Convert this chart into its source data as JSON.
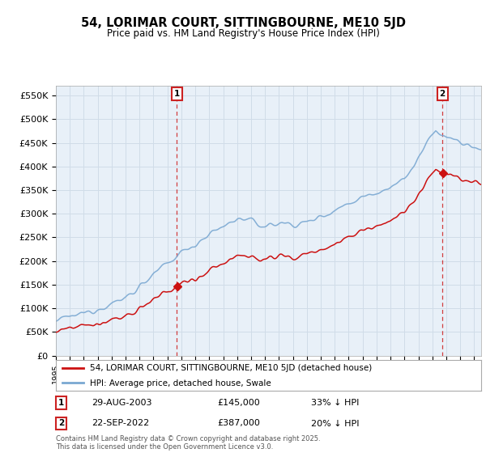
{
  "title": "54, LORIMAR COURT, SITTINGBOURNE, ME10 5JD",
  "subtitle": "Price paid vs. HM Land Registry's House Price Index (HPI)",
  "ylim": [
    0,
    570000
  ],
  "yticks": [
    0,
    50000,
    100000,
    150000,
    200000,
    250000,
    300000,
    350000,
    400000,
    450000,
    500000,
    550000
  ],
  "ytick_labels": [
    "£0",
    "£50K",
    "£100K",
    "£150K",
    "£200K",
    "£250K",
    "£300K",
    "£350K",
    "£400K",
    "£450K",
    "£500K",
    "£550K"
  ],
  "hpi_color": "#7aa8d2",
  "price_color": "#cc1111",
  "marker1_date": 2003.66,
  "marker1_price": 145000,
  "marker2_date": 2022.72,
  "marker2_price": 387000,
  "legend_line1": "54, LORIMAR COURT, SITTINGBOURNE, ME10 5JD (detached house)",
  "legend_line2": "HPI: Average price, detached house, Swale",
  "annotation1_date": "29-AUG-2003",
  "annotation1_price": "£145,000",
  "annotation1_hpi": "33% ↓ HPI",
  "annotation2_date": "22-SEP-2022",
  "annotation2_price": "£387,000",
  "annotation2_hpi": "20% ↓ HPI",
  "footnote": "Contains HM Land Registry data © Crown copyright and database right 2025.\nThis data is licensed under the Open Government Licence v3.0.",
  "bg_color": "#ffffff",
  "grid_color": "#d0dce8",
  "plot_bg_color": "#e8f0f8"
}
